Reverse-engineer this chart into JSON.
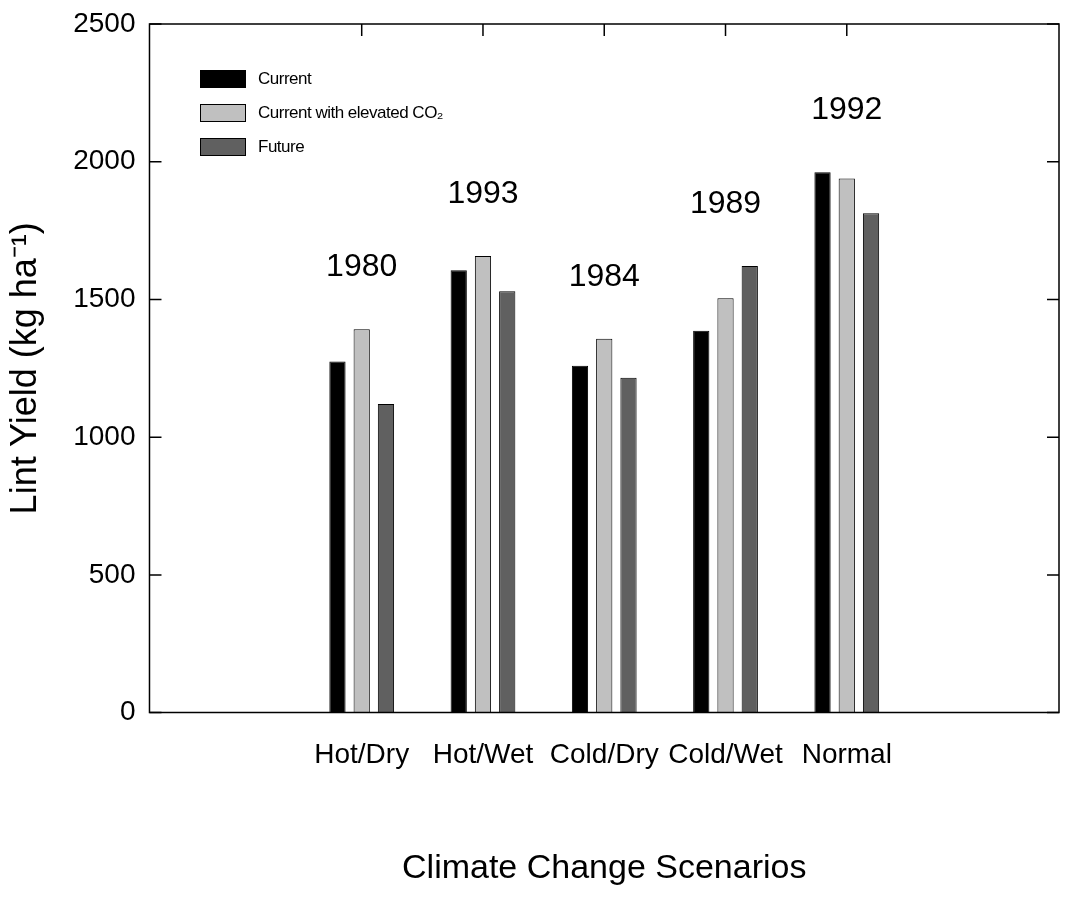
{
  "chart_data": {
    "type": "bar",
    "xlabel": "Climate Change Scenarios",
    "ylabel": "Lint Yield (kg ha⁻¹)",
    "categories": [
      "Hot/Dry",
      "Hot/Wet",
      "Cold/Dry",
      "Cold/Wet",
      "Normal"
    ],
    "series": [
      {
        "name": "Current",
        "color": "#000000",
        "values": [
          1275,
          1606,
          1259,
          1386,
          1962
        ]
      },
      {
        "name": "Current with elevated CO₂",
        "color": "#c0c0c0",
        "values": [
          1392,
          1658,
          1357,
          1504,
          1939
        ]
      },
      {
        "name": "Future",
        "color": "#606060",
        "values": [
          1120,
          1530,
          1216,
          1621,
          1813
        ]
      }
    ],
    "ylim": [
      0,
      2500
    ],
    "yticks": [
      0,
      500,
      1000,
      1500,
      2000,
      2500
    ],
    "annotations": [
      "1980",
      "1993",
      "1984",
      "1989",
      "1992"
    ],
    "legend": "top left",
    "grid": false
  }
}
